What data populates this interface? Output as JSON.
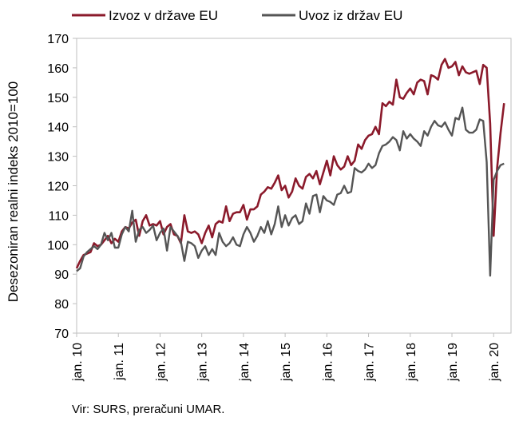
{
  "chart_data": {
    "type": "line",
    "title": "",
    "xlabel": "",
    "ylabel": "Desezoniran realni indeks 2010=100",
    "ylim": [
      70,
      170
    ],
    "yticks": [
      70,
      80,
      90,
      100,
      110,
      120,
      130,
      140,
      150,
      160,
      170
    ],
    "x_start": "2010-01",
    "x_end": "2020-06",
    "x_ticks": [
      "jan. 10",
      "jan. 11",
      "jan. 12",
      "jan. 13",
      "jan. 14",
      "jan. 15",
      "jan. 16",
      "jan. 17",
      "jan. 18",
      "jan. 19",
      "jan. 20"
    ],
    "grid": false,
    "legend": "top",
    "series": [
      {
        "name": "Izvoz v države EU",
        "color": "#8b1a2b",
        "values": [
          92.0,
          94.5,
          96.5,
          97.0,
          97.5,
          100.5,
          99.5,
          100.0,
          101.5,
          103.0,
          100.5,
          102.0,
          101.0,
          104.5,
          106.0,
          105.5,
          107.5,
          108.5,
          103.0,
          108.0,
          110.0,
          106.5,
          107.0,
          106.5,
          108.0,
          103.5,
          106.0,
          107.0,
          103.5,
          103.0,
          100.5,
          110.0,
          104.5,
          104.0,
          104.5,
          103.5,
          100.5,
          104.0,
          106.5,
          102.5,
          107.0,
          108.0,
          107.5,
          113.0,
          108.0,
          110.5,
          111.0,
          111.0,
          113.5,
          108.5,
          112.0,
          112.0,
          113.0,
          117.0,
          118.0,
          119.5,
          119.0,
          121.0,
          123.5,
          118.5,
          120.0,
          116.0,
          118.0,
          122.5,
          120.0,
          119.0,
          123.0,
          124.0,
          122.5,
          125.0,
          120.5,
          124.5,
          128.5,
          123.5,
          130.0,
          127.0,
          125.5,
          126.5,
          130.0,
          127.0,
          128.5,
          134.0,
          132.5,
          135.5,
          137.0,
          137.5,
          140.0,
          137.5,
          148.0,
          147.0,
          148.5,
          147.5,
          156.0,
          150.0,
          149.5,
          151.5,
          153.0,
          151.0,
          155.0,
          156.0,
          155.5,
          151.0,
          157.5,
          157.0,
          156.0,
          161.0,
          163.0,
          160.0,
          160.5,
          162.0,
          157.5,
          160.5,
          158.5,
          158.0,
          158.5,
          159.0,
          154.5,
          161.0,
          160.0,
          141.0,
          103.0,
          126.0,
          138.0,
          148.0
        ]
      },
      {
        "name": "Uvoz iz držav EU",
        "color": "#555555",
        "values": [
          91.0,
          92.0,
          96.0,
          97.5,
          98.5,
          99.5,
          98.5,
          100.0,
          104.0,
          101.5,
          104.0,
          99.0,
          99.0,
          103.5,
          106.0,
          104.5,
          111.5,
          101.0,
          105.0,
          106.0,
          104.0,
          105.0,
          106.5,
          101.5,
          104.0,
          105.5,
          98.0,
          106.0,
          104.5,
          103.0,
          101.0,
          94.5,
          101.0,
          100.5,
          99.5,
          95.5,
          98.0,
          99.5,
          96.5,
          98.5,
          96.5,
          104.0,
          101.0,
          99.5,
          100.5,
          102.5,
          100.0,
          99.5,
          103.5,
          106.0,
          104.0,
          101.0,
          103.0,
          106.0,
          104.0,
          108.0,
          103.5,
          107.0,
          113.0,
          106.0,
          110.0,
          106.5,
          109.0,
          110.0,
          107.0,
          108.0,
          114.0,
          110.5,
          116.5,
          117.0,
          111.0,
          116.5,
          115.0,
          114.5,
          113.5,
          117.0,
          117.5,
          120.0,
          117.5,
          118.0,
          126.0,
          125.0,
          124.5,
          125.5,
          127.5,
          126.0,
          127.0,
          131.0,
          133.5,
          134.0,
          135.0,
          136.5,
          135.5,
          132.0,
          138.5,
          136.0,
          137.5,
          136.0,
          135.0,
          133.5,
          138.5,
          137.0,
          140.0,
          142.0,
          140.5,
          140.0,
          141.5,
          139.0,
          137.0,
          143.0,
          142.5,
          146.5,
          139.0,
          138.0,
          138.0,
          139.0,
          142.5,
          142.0,
          128.0,
          89.5,
          122.0,
          125.0,
          127.0,
          127.5
        ]
      }
    ],
    "source_note": "Vir: SURS, preračuni UMAR."
  }
}
